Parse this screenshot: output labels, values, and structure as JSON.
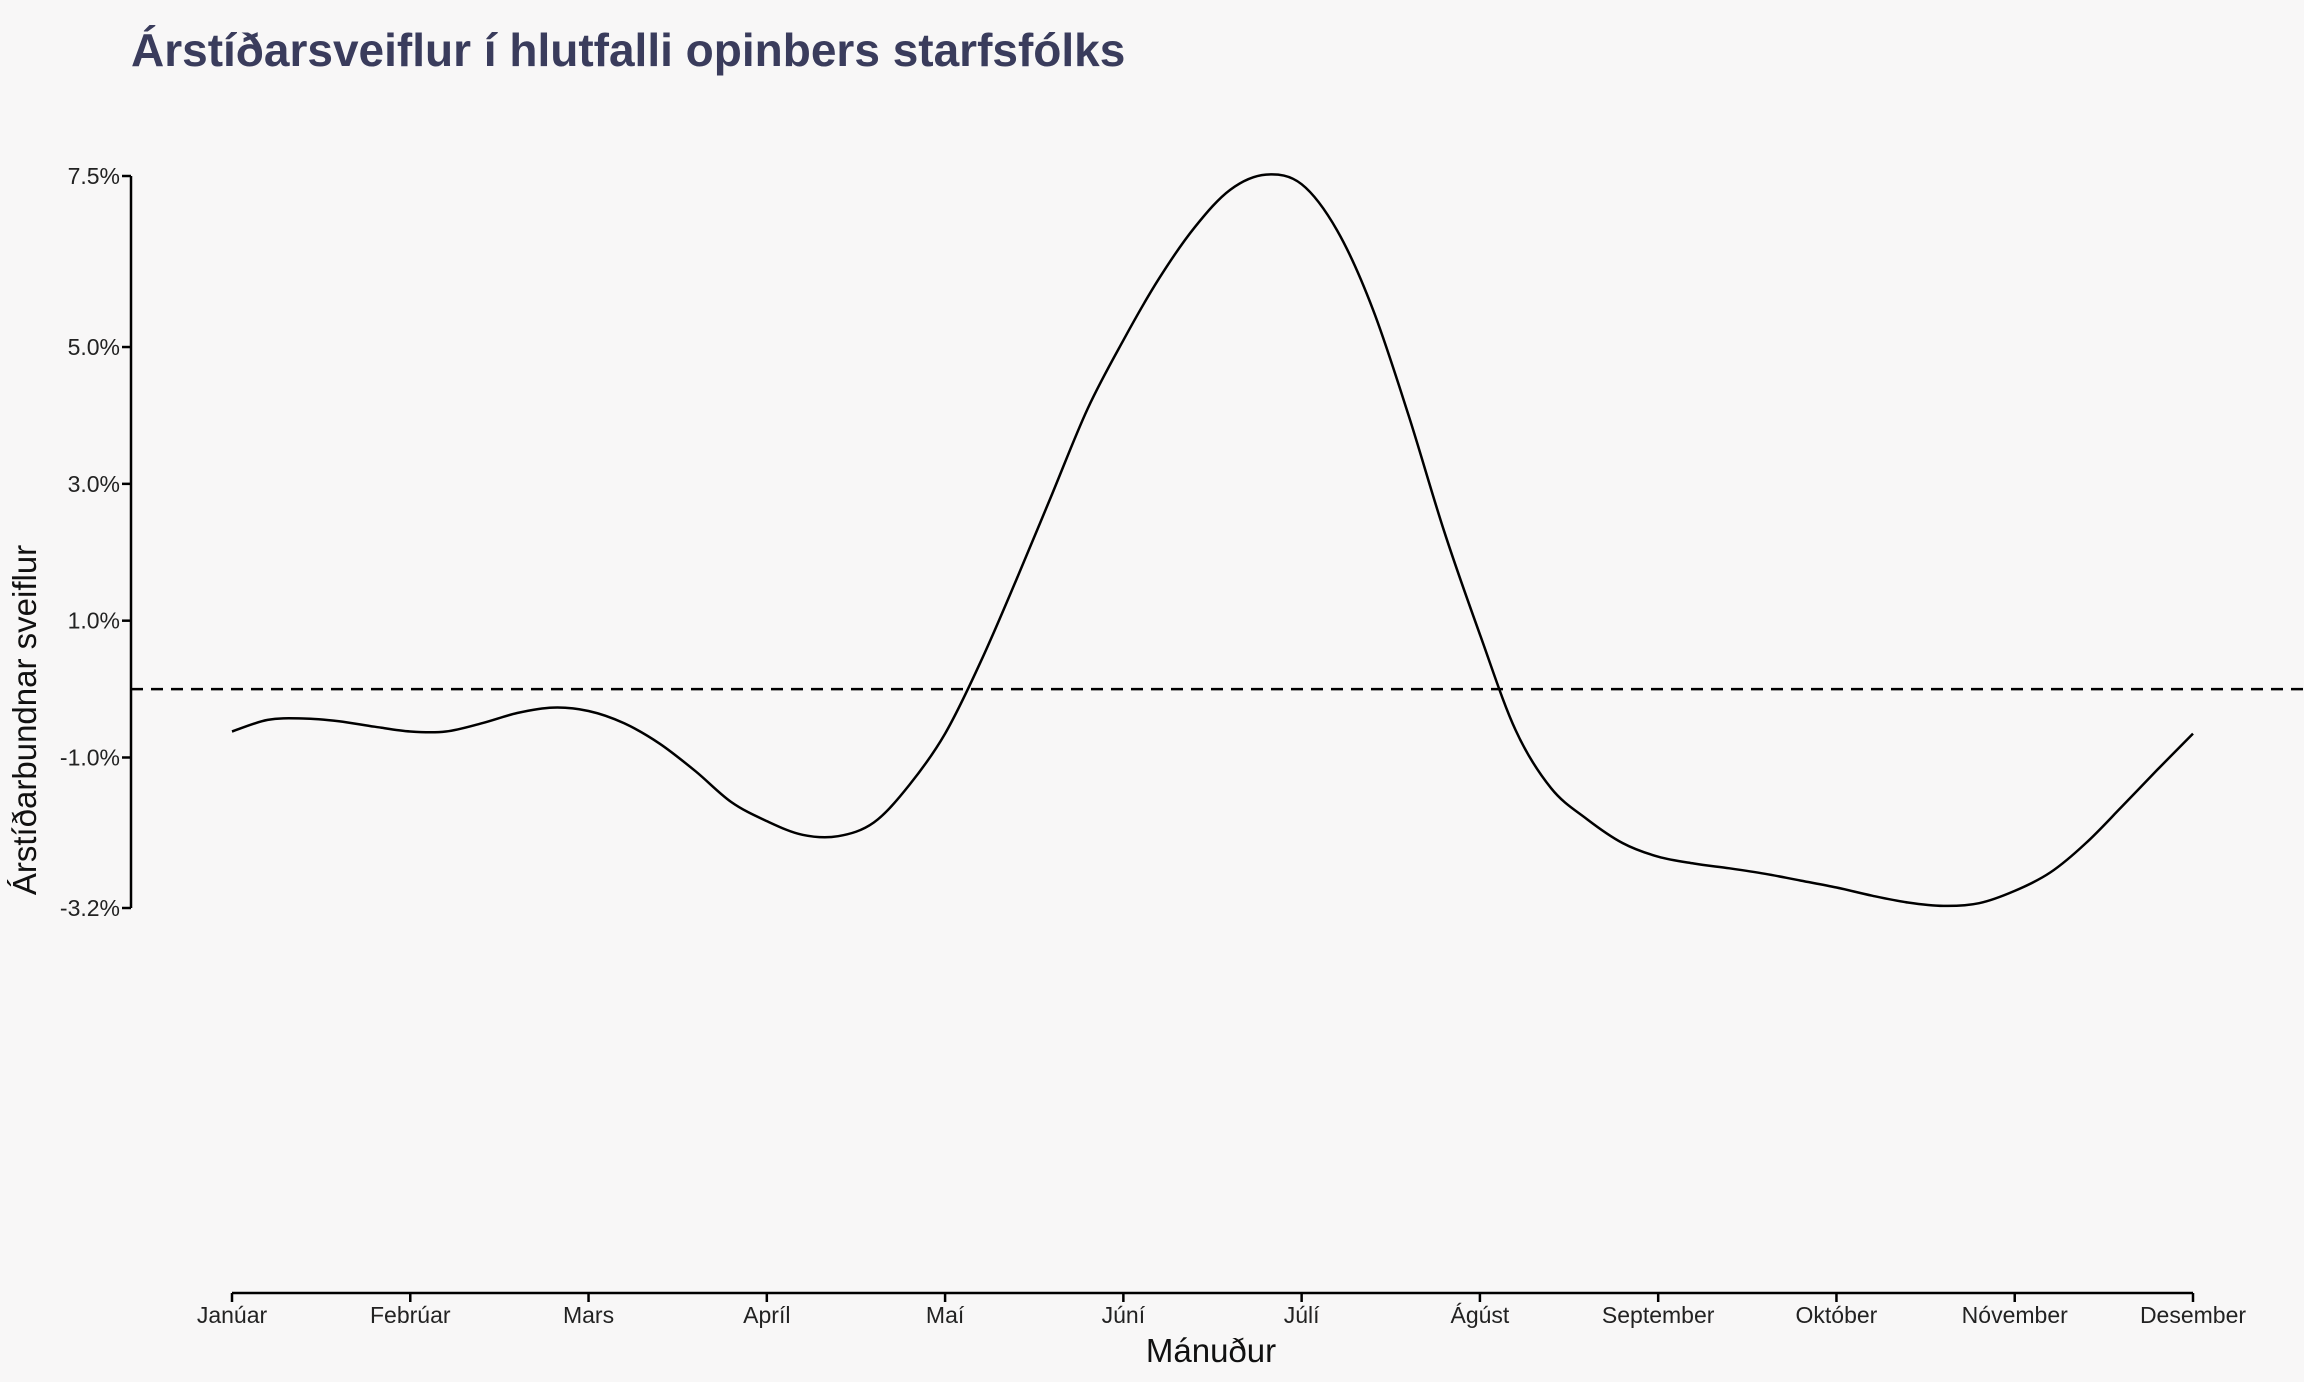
{
  "chart_data": {
    "type": "line",
    "title": "Árstíðarsveiflur í hlutfalli opinbers starfsfólks",
    "xlabel": "Mánuður",
    "ylabel": "Árstíðarbundnar sveiflur",
    "categories": [
      "Janúar",
      "Febrúar",
      "Mars",
      "Apríl",
      "Maí",
      "Júní",
      "Júlí",
      "Ágúst",
      "September",
      "Október",
      "Nóvember",
      "Desember"
    ],
    "y_ticks": [
      {
        "value": 7.5,
        "label": "7.5%"
      },
      {
        "value": 5.0,
        "label": "5.0%"
      },
      {
        "value": 3.0,
        "label": "3.0%"
      },
      {
        "value": 1.0,
        "label": "1.0%"
      },
      {
        "value": -1.0,
        "label": "-1.0%"
      },
      {
        "value": -3.2,
        "label": "-3.2%"
      }
    ],
    "ylim": [
      -3.2,
      7.5
    ],
    "reference_line": 0,
    "series": [
      {
        "x": [
          1,
          1.2,
          1.4,
          1.6,
          1.8,
          2,
          2.2,
          2.4,
          2.6,
          2.8,
          3,
          3.2,
          3.4,
          3.6,
          3.8,
          4,
          4.2,
          4.4,
          4.6,
          4.8,
          5,
          5.2,
          5.4,
          5.6,
          5.8,
          6,
          6.2,
          6.4,
          6.6,
          6.8,
          7,
          7.2,
          7.4,
          7.6,
          7.8,
          8,
          8.2,
          8.4,
          8.6,
          8.8,
          9,
          9.2,
          9.4,
          9.6,
          9.8,
          10,
          10.2,
          10.4,
          10.6,
          10.8,
          11,
          11.2,
          11.4,
          11.6,
          11.8,
          12
        ],
        "values": [
          -0.62,
          -0.45,
          -0.43,
          -0.47,
          -0.55,
          -0.62,
          -0.62,
          -0.5,
          -0.35,
          -0.27,
          -0.32,
          -0.5,
          -0.8,
          -1.2,
          -1.65,
          -1.93,
          -2.13,
          -2.15,
          -1.95,
          -1.4,
          -0.65,
          0.4,
          1.6,
          2.85,
          4.1,
          5.1,
          6.0,
          6.75,
          7.3,
          7.52,
          7.38,
          6.7,
          5.55,
          4.0,
          2.3,
          0.8,
          -0.6,
          -1.45,
          -1.9,
          -2.25,
          -2.45,
          -2.55,
          -2.62,
          -2.7,
          -2.8,
          -2.9,
          -3.02,
          -3.12,
          -3.17,
          -3.13,
          -2.95,
          -2.68,
          -2.25,
          -1.72,
          -1.18,
          -0.65
        ]
      }
    ],
    "grid": false
  }
}
